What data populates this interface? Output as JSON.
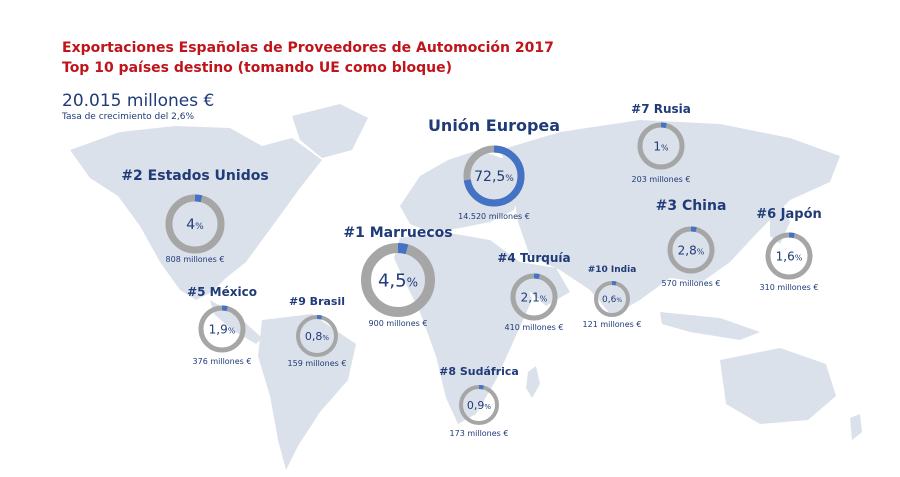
{
  "header": {
    "title": "Exportaciones Españolas de Proveedores de Automoción 2017",
    "subtitle": "Top 10 países destino (tomando UE como bloque)",
    "total": "20.015 millones €",
    "growth": "Tasa de crecimiento del 2,6%"
  },
  "colors": {
    "title": "#c0141b",
    "text": "#1f3b78",
    "ring_fill": "#4472c4",
    "ring_track": "#a6a6a6",
    "map": "#dbe1ea"
  },
  "chart_data": {
    "type": "pie",
    "title": "Exportaciones Españolas de Proveedores de Automoción 2017",
    "subtitle": "Top 10 países destino (tomando UE como bloque)",
    "unit": "millones €",
    "total_millions_eur": 20015,
    "growth_rate_pct": 2.6,
    "items": [
      {
        "label": "Unión Europea",
        "rank": "",
        "percent": 72.5,
        "percent_label": "72,5",
        "value": 14520,
        "value_label": "14.520 millones €"
      },
      {
        "label": "#1 Marruecos",
        "rank": 1,
        "percent": 4.5,
        "percent_label": "4,5",
        "value": 900,
        "value_label": "900 millones €"
      },
      {
        "label": "#2 Estados Unidos",
        "rank": 2,
        "percent": 4.0,
        "percent_label": "4",
        "value": 808,
        "value_label": "808 millones €"
      },
      {
        "label": "#3 China",
        "rank": 3,
        "percent": 2.8,
        "percent_label": "2,8",
        "value": 570,
        "value_label": "570 millones €"
      },
      {
        "label": "#4 Turquía",
        "rank": 4,
        "percent": 2.1,
        "percent_label": "2,1",
        "value": 410,
        "value_label": "410 millones €"
      },
      {
        "label": "#5 México",
        "rank": 5,
        "percent": 1.9,
        "percent_label": "1,9",
        "value": 376,
        "value_label": "376 millones €"
      },
      {
        "label": "#6 Japón",
        "rank": 6,
        "percent": 1.6,
        "percent_label": "1,6",
        "value": 310,
        "value_label": "310 millones €"
      },
      {
        "label": "#7 Rusia",
        "rank": 7,
        "percent": 1.0,
        "percent_label": "1",
        "value": 203,
        "value_label": "203 millones €"
      },
      {
        "label": "#8 Sudáfrica",
        "rank": 8,
        "percent": 0.9,
        "percent_label": "0,9",
        "value": 173,
        "value_label": "173 millones €"
      },
      {
        "label": "#9 Brasil",
        "rank": 9,
        "percent": 0.8,
        "percent_label": "0,8",
        "value": 159,
        "value_label": "159 millones €"
      },
      {
        "label": "#10 India",
        "rank": 10,
        "percent": 0.6,
        "percent_label": "0,6",
        "value": 121,
        "value_label": "121 millones €"
      }
    ]
  }
}
